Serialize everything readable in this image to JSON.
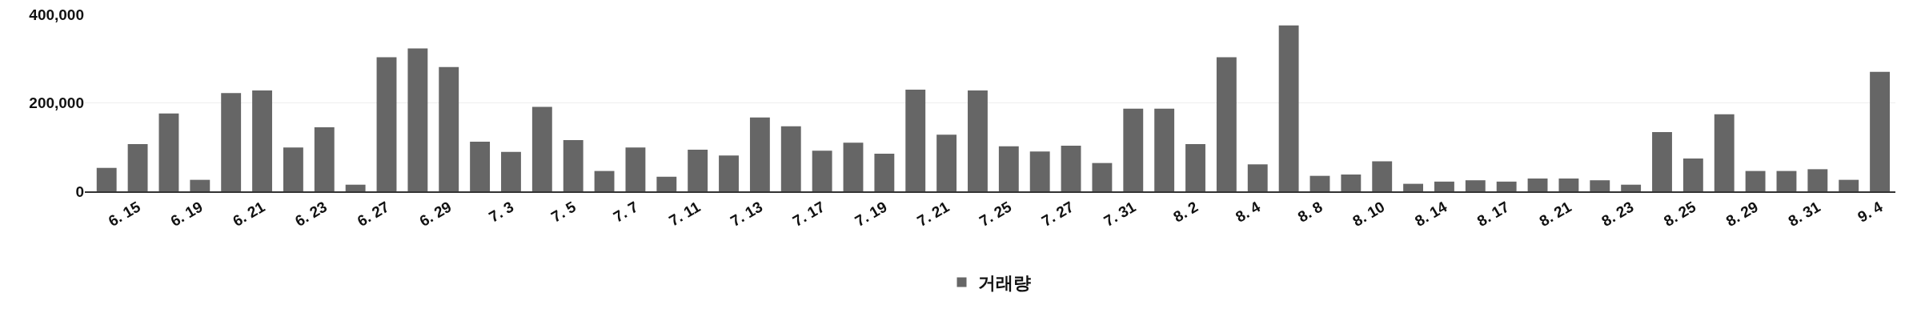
{
  "chart_data": {
    "type": "bar",
    "categories": [
      null,
      "6. 15",
      null,
      "6. 19",
      null,
      "6. 21",
      null,
      "6. 23",
      null,
      "6. 27",
      null,
      "6. 29",
      null,
      "7. 3",
      null,
      "7. 5",
      null,
      "7. 7",
      null,
      "7. 11",
      null,
      "7. 13",
      null,
      "7. 17",
      null,
      "7. 19",
      null,
      "7. 21",
      null,
      "7. 25",
      null,
      "7. 27",
      null,
      "7. 31",
      null,
      "8. 2",
      null,
      "8. 4",
      null,
      "8. 8",
      null,
      "8. 10",
      null,
      "8. 14",
      null,
      "8. 17",
      null,
      "8. 21",
      null,
      "8. 23",
      null,
      "8. 25",
      null,
      "8. 29",
      null,
      "8. 31",
      null,
      "9. 4"
    ],
    "series": [
      {
        "name": "거래량",
        "color": "#666666",
        "values": [
          53000,
          107000,
          176000,
          26000,
          222000,
          228000,
          99000,
          145000,
          15000,
          303000,
          323000,
          281000,
          112000,
          89000,
          191000,
          116000,
          46000,
          99000,
          33000,
          94000,
          81000,
          167000,
          147000,
          92000,
          110000,
          85000,
          230000,
          128000,
          228000,
          102000,
          90000,
          103000,
          64000,
          187000,
          187000,
          107000,
          303000,
          61000,
          375000,
          35000,
          38000,
          68000,
          17000,
          22000,
          25000,
          22000,
          29000,
          29000,
          25000,
          15000,
          134000,
          74000,
          174000,
          46000,
          46000,
          50000,
          26000,
          270000
        ]
      }
    ],
    "ylim": [
      0,
      400000
    ],
    "yticks": [
      0,
      {
        "value": 200000,
        "label": "200,000"
      },
      {
        "value": 400000,
        "label": "400,000"
      }
    ],
    "grid": "y",
    "legend": "bottom"
  }
}
